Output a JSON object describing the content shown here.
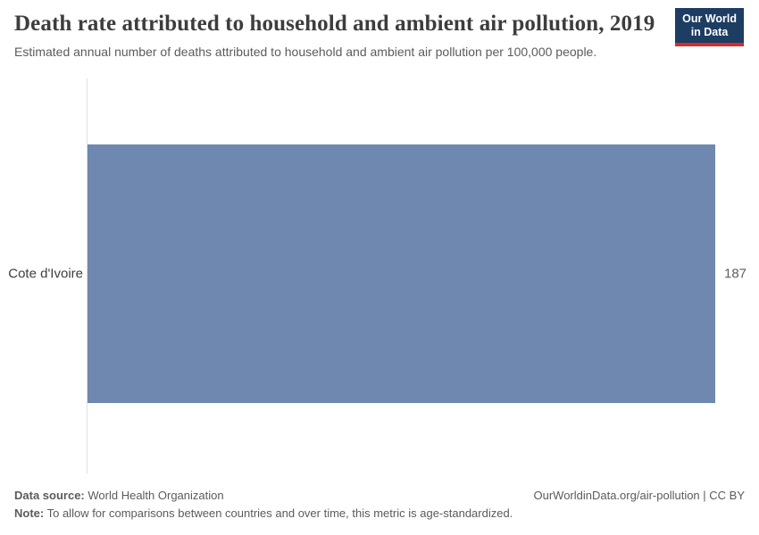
{
  "header": {
    "title": "Death rate attributed to household and ambient air pollution, 2019",
    "subtitle": "Estimated annual number of deaths attributed to household and ambient air pollution per 100,000 people.",
    "logo": {
      "line1": "Our World",
      "line2": "in Data"
    }
  },
  "chart_data": {
    "type": "bar",
    "orientation": "horizontal",
    "title": "Death rate attributed to household and ambient air pollution, 2019",
    "categories": [
      "Cote d'Ivoire"
    ],
    "values": [
      187
    ],
    "value_labels": [
      "187"
    ],
    "xlim": [
      0,
      187
    ],
    "grid": false,
    "legend": "none",
    "bar_color": "#6e88b0"
  },
  "colors": {
    "bar": "#6e88b0",
    "axis_line": "#e0e0e0",
    "logo_background": "#1d3d63",
    "logo_underline": "#d42b2b",
    "title_text": "#3d3d3d",
    "muted_text": "#5b5b5b"
  },
  "footer": {
    "data_source_label": "Data source:",
    "data_source": "World Health Organization",
    "note_label": "Note:",
    "note": "To allow for comparisons between countries and over time, this metric is age-standardized.",
    "link": "OurWorldinData.org/air-pollution | CC BY"
  }
}
